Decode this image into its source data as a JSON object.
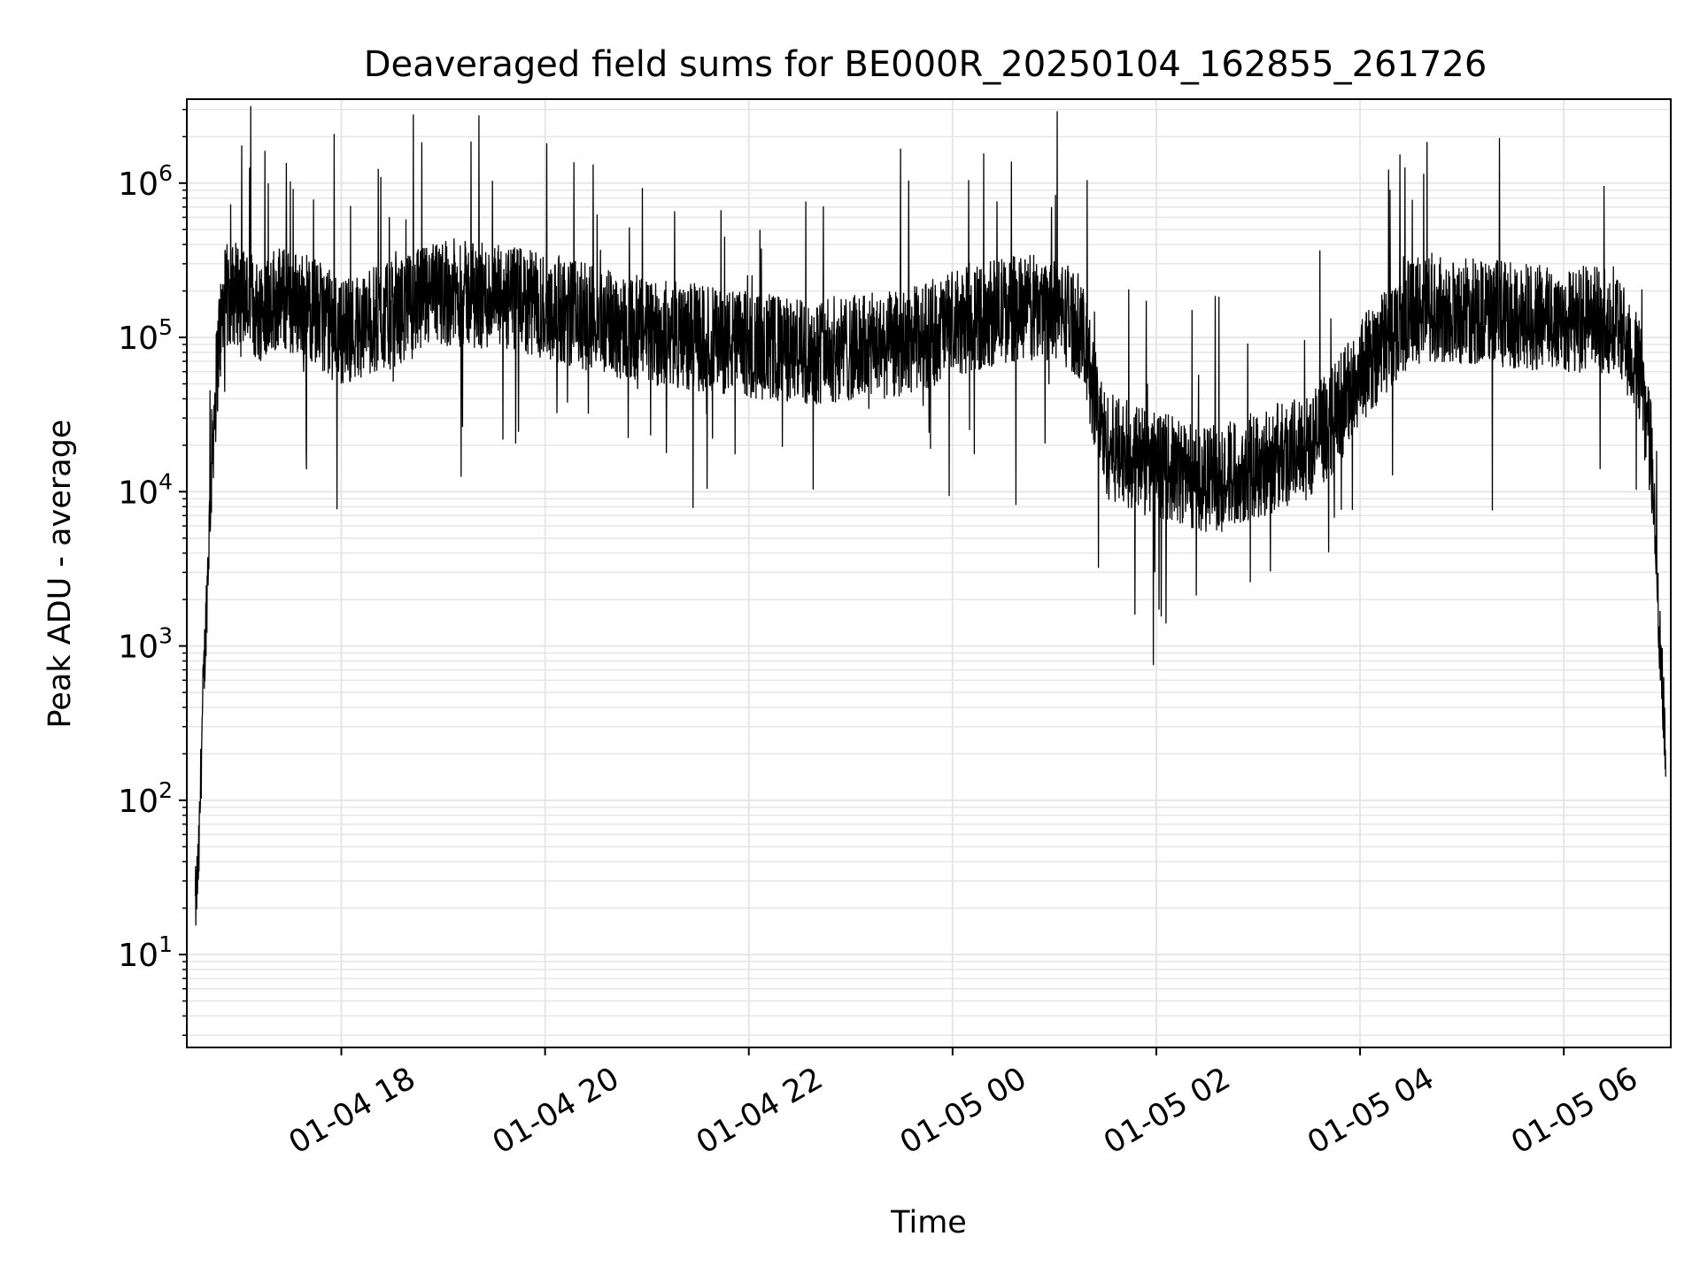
{
  "chart_data": {
    "type": "line",
    "title": "Deaveraged field sums for BE000R_20250104_162855_261726",
    "xlabel": "Time",
    "ylabel": "Peak ADU - average",
    "yscale": "log",
    "grid": true,
    "series_color": "#000000",
    "grid_color": "#e6e6e6",
    "xlim": [
      "2025-01-04T16:29",
      "2025-01-05T07:03"
    ],
    "ylim": [
      2.5,
      3500000
    ],
    "x_ticks": [
      {
        "t": "2025-01-04T18:00",
        "label": "01-04 18"
      },
      {
        "t": "2025-01-04T20:00",
        "label": "01-04 20"
      },
      {
        "t": "2025-01-04T22:00",
        "label": "01-04 22"
      },
      {
        "t": "2025-01-05T00:00",
        "label": "01-05 00"
      },
      {
        "t": "2025-01-05T02:00",
        "label": "01-05 02"
      },
      {
        "t": "2025-01-05T04:00",
        "label": "01-05 04"
      },
      {
        "t": "2025-01-05T06:00",
        "label": "01-05 06"
      }
    ],
    "y_ticks": [
      {
        "value": 10,
        "base": "10",
        "exp": "1"
      },
      {
        "value": 100,
        "base": "10",
        "exp": "2"
      },
      {
        "value": 1000,
        "base": "10",
        "exp": "3"
      },
      {
        "value": 10000,
        "base": "10",
        "exp": "4"
      },
      {
        "value": 100000,
        "base": "10",
        "exp": "5"
      },
      {
        "value": 1000000,
        "base": "10",
        "exp": "6"
      }
    ],
    "series": [
      {
        "x": [
          "2025-01-04T16:34",
          "2025-01-04T16:36",
          "2025-01-04T16:38",
          "2025-01-04T16:40",
          "2025-01-04T16:44",
          "2025-01-04T16:48",
          "2025-01-04T16:52",
          "2025-01-04T17:00",
          "2025-01-04T17:10",
          "2025-01-04T17:20",
          "2025-01-04T17:40",
          "2025-01-04T18:00",
          "2025-01-04T18:30",
          "2025-01-04T19:00",
          "2025-01-04T19:30",
          "2025-01-04T20:00",
          "2025-01-04T20:30",
          "2025-01-04T21:00",
          "2025-01-04T21:30",
          "2025-01-04T22:00",
          "2025-01-04T22:30",
          "2025-01-04T23:00",
          "2025-01-04T23:30",
          "2025-01-05T00:00",
          "2025-01-05T00:30",
          "2025-01-05T01:00",
          "2025-01-05T01:15",
          "2025-01-05T01:30",
          "2025-01-05T02:00",
          "2025-01-05T02:30",
          "2025-01-05T03:00",
          "2025-01-05T03:30",
          "2025-01-05T03:45",
          "2025-01-05T04:00",
          "2025-01-05T04:30",
          "2025-01-05T05:00",
          "2025-01-05T05:30",
          "2025-01-05T06:00",
          "2025-01-05T06:30",
          "2025-01-05T06:45",
          "2025-01-05T06:52",
          "2025-01-05T06:56",
          "2025-01-05T07:00"
        ],
        "y": [
          20,
          40,
          300,
          1200,
          20000,
          100000,
          180000,
          200000,
          150000,
          180000,
          160000,
          110000,
          140000,
          200000,
          180000,
          160000,
          130000,
          110000,
          100000,
          90000,
          80000,
          85000,
          90000,
          120000,
          150000,
          160000,
          120000,
          20000,
          15000,
          12000,
          15000,
          20000,
          30000,
          60000,
          150000,
          150000,
          140000,
          130000,
          130000,
          60000,
          15000,
          1500,
          200
        ]
      }
    ]
  }
}
